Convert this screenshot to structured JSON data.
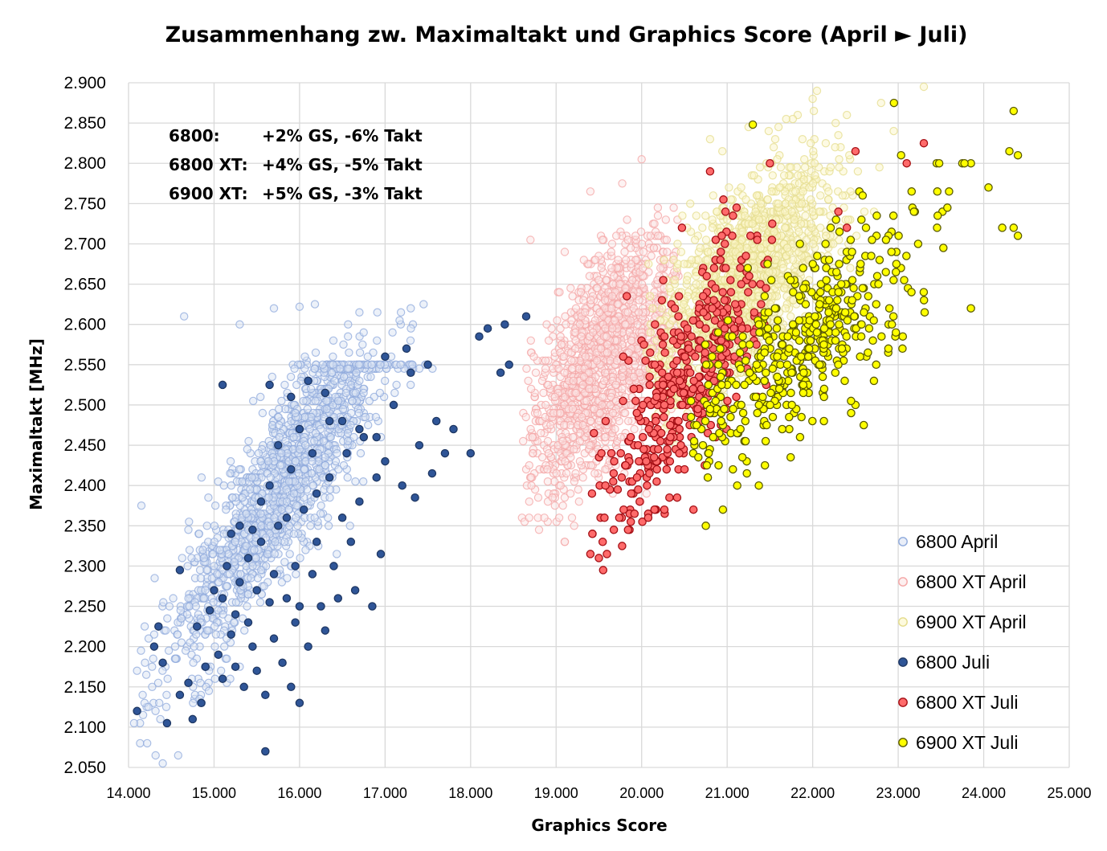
{
  "chart_data": {
    "type": "scatter",
    "title": "Zusammenhang zw. Maximaltakt und Graphics Score (April ► Juli)",
    "xlabel": "Graphics Score",
    "ylabel": "Maximaltakt [MHz]",
    "xlim": [
      14000,
      25000
    ],
    "ylim": [
      2050,
      2900
    ],
    "xticks": [
      14000,
      15000,
      16000,
      17000,
      18000,
      19000,
      20000,
      21000,
      22000,
      23000,
      24000,
      25000
    ],
    "xtick_labels": [
      "14.000",
      "15.000",
      "16.000",
      "17.000",
      "18.000",
      "19.000",
      "20.000",
      "21.000",
      "22.000",
      "23.000",
      "24.000",
      "25.000"
    ],
    "yticks": [
      2050,
      2100,
      2150,
      2200,
      2250,
      2300,
      2350,
      2400,
      2450,
      2500,
      2550,
      2600,
      2650,
      2700,
      2750,
      2800,
      2850,
      2900
    ],
    "ytick_labels": [
      "2.050",
      "2.100",
      "2.150",
      "2.200",
      "2.250",
      "2.300",
      "2.350",
      "2.400",
      "2.450",
      "2.500",
      "2.550",
      "2.600",
      "2.650",
      "2.700",
      "2.750",
      "2.800",
      "2.850",
      "2.900"
    ],
    "grid": true,
    "legend_position": "bottom-right",
    "annotations": [
      {
        "label": "6800:",
        "text": "+2% GS, -6% Takt"
      },
      {
        "label": "6800 XT:",
        "text": "+4% GS, -5% Takt"
      },
      {
        "label": "6900 XT:",
        "text": "+5% GS, -3% Takt"
      }
    ],
    "series": [
      {
        "name": "6800 April",
        "style": "hollow",
        "fill": "#dae3f3",
        "stroke": "#8faadc",
        "opacity": 0.5,
        "point_count": 1400,
        "distribution": {
          "x_center": 15850,
          "x_sd": 700,
          "slope": 0.155,
          "intercept": 2410,
          "y_sd": 55,
          "x_min": 14050,
          "x_max": 17600,
          "y_min": 2055,
          "y_max": 2625,
          "y_cap": 2550
        },
        "points": [
          [
            14650,
            2610
          ],
          [
            15700,
            2620
          ],
          [
            16000,
            2622
          ],
          [
            17450,
            2625
          ],
          [
            14400,
            2055
          ],
          [
            14100,
            2170
          ],
          [
            14150,
            2375
          ],
          [
            17300,
            2620
          ],
          [
            15300,
            2600
          ],
          [
            16700,
            2615
          ]
        ]
      },
      {
        "name": "6800 XT April",
        "style": "hollow",
        "fill": "#fbe5e5",
        "stroke": "#f4a6a6",
        "opacity": 0.5,
        "point_count": 1300,
        "distribution": {
          "x_center": 19550,
          "x_sd": 420,
          "slope": 0.12,
          "intercept": 2555,
          "y_sd": 65,
          "x_min": 18600,
          "x_max": 20450,
          "y_min": 2330,
          "y_max": 2800
        },
        "points": [
          [
            18700,
            2705
          ],
          [
            19400,
            2765
          ],
          [
            20000,
            2805
          ],
          [
            18800,
            2345
          ],
          [
            19100,
            2330
          ],
          [
            18650,
            2420
          ]
        ]
      },
      {
        "name": "6900 XT April",
        "style": "hollow",
        "fill": "#fbf6c7",
        "stroke": "#e4dc8c",
        "opacity": 0.55,
        "point_count": 1400,
        "distribution": {
          "x_center": 21150,
          "x_sd": 550,
          "slope": 0.09,
          "intercept": 2650,
          "y_sd": 55,
          "x_min": 20050,
          "x_max": 23400,
          "y_min": 2450,
          "y_max": 2895
        },
        "points": [
          [
            22050,
            2890
          ],
          [
            23300,
            2895
          ],
          [
            22000,
            2880
          ],
          [
            22800,
            2875
          ],
          [
            21600,
            2845
          ],
          [
            20800,
            2830
          ],
          [
            22400,
            2860
          ],
          [
            23100,
            2800
          ]
        ]
      },
      {
        "name": "6800 Juli",
        "style": "filled",
        "fill": "#2f5597",
        "stroke": "#1f3864",
        "opacity": 1,
        "points": [
          [
            14100,
            2120
          ],
          [
            14350,
            2225
          ],
          [
            14300,
            2200
          ],
          [
            14400,
            2180
          ],
          [
            14450,
            2105
          ],
          [
            14600,
            2140
          ],
          [
            14700,
            2155
          ],
          [
            14750,
            2110
          ],
          [
            14800,
            2225
          ],
          [
            14600,
            2295
          ],
          [
            14850,
            2130
          ],
          [
            14900,
            2175
          ],
          [
            14950,
            2245
          ],
          [
            15000,
            2270
          ],
          [
            15050,
            2190
          ],
          [
            15100,
            2160
          ],
          [
            15100,
            2260
          ],
          [
            15150,
            2300
          ],
          [
            15200,
            2215
          ],
          [
            15250,
            2175
          ],
          [
            15250,
            2240
          ],
          [
            15300,
            2280
          ],
          [
            15350,
            2150
          ],
          [
            15400,
            2230
          ],
          [
            15400,
            2310
          ],
          [
            15450,
            2200
          ],
          [
            15500,
            2170
          ],
          [
            15500,
            2270
          ],
          [
            15550,
            2330
          ],
          [
            15600,
            2140
          ],
          [
            15600,
            2070
          ],
          [
            15650,
            2255
          ],
          [
            15700,
            2290
          ],
          [
            15700,
            2210
          ],
          [
            15750,
            2350
          ],
          [
            15800,
            2180
          ],
          [
            15850,
            2260
          ],
          [
            15850,
            2360
          ],
          [
            15900,
            2150
          ],
          [
            15950,
            2230
          ],
          [
            15950,
            2300
          ],
          [
            16000,
            2130
          ],
          [
            16000,
            2250
          ],
          [
            16050,
            2370
          ],
          [
            16100,
            2200
          ],
          [
            16150,
            2290
          ],
          [
            16200,
            2330
          ],
          [
            16200,
            2390
          ],
          [
            16250,
            2250
          ],
          [
            16300,
            2220
          ],
          [
            16350,
            2410
          ],
          [
            16400,
            2300
          ],
          [
            16450,
            2260
          ],
          [
            16500,
            2360
          ],
          [
            16550,
            2440
          ],
          [
            16600,
            2330
          ],
          [
            16650,
            2270
          ],
          [
            16700,
            2380
          ],
          [
            16750,
            2460
          ],
          [
            16850,
            2250
          ],
          [
            16900,
            2410
          ],
          [
            16950,
            2315
          ],
          [
            17000,
            2430
          ],
          [
            17100,
            2500
          ],
          [
            17200,
            2400
          ],
          [
            17300,
            2540
          ],
          [
            17350,
            2385
          ],
          [
            17400,
            2450
          ],
          [
            17500,
            2550
          ],
          [
            17550,
            2415
          ],
          [
            17600,
            2480
          ],
          [
            17700,
            2440
          ],
          [
            17800,
            2470
          ],
          [
            18000,
            2440
          ],
          [
            18100,
            2585
          ],
          [
            18200,
            2595
          ],
          [
            18350,
            2540
          ],
          [
            18400,
            2600
          ],
          [
            18450,
            2550
          ],
          [
            18650,
            2610
          ],
          [
            15100,
            2525
          ],
          [
            15650,
            2525
          ],
          [
            15900,
            2510
          ],
          [
            16100,
            2530
          ],
          [
            16300,
            2515
          ],
          [
            16500,
            2480
          ],
          [
            16700,
            2470
          ],
          [
            16900,
            2460
          ],
          [
            17000,
            2560
          ],
          [
            17250,
            2570
          ],
          [
            16000,
            2470
          ],
          [
            16150,
            2440
          ],
          [
            16350,
            2480
          ],
          [
            15750,
            2450
          ],
          [
            15900,
            2420
          ],
          [
            15650,
            2400
          ],
          [
            15550,
            2380
          ],
          [
            15450,
            2345
          ],
          [
            15300,
            2350
          ],
          [
            15200,
            2340
          ]
        ]
      },
      {
        "name": "6800 XT Juli",
        "style": "filled",
        "fill": "#ff6b6b",
        "stroke": "#a50f15",
        "opacity": 1,
        "point_count": 420,
        "distribution": {
          "x_center": 20450,
          "x_sd": 500,
          "slope": 0.14,
          "intercept": 2520,
          "y_sd": 60,
          "x_min": 19400,
          "x_max": 22500,
          "y_min": 2300,
          "y_max": 2790
        },
        "points": [
          [
            19400,
            2315
          ],
          [
            19500,
            2310
          ],
          [
            19550,
            2295
          ],
          [
            23300,
            2825
          ],
          [
            22500,
            2815
          ],
          [
            23100,
            2800
          ],
          [
            21500,
            2800
          ],
          [
            20800,
            2790
          ],
          [
            22300,
            2740
          ],
          [
            22400,
            2720
          ]
        ]
      },
      {
        "name": "6900 XT Juli",
        "style": "filled",
        "fill": "#ffff00",
        "stroke": "#5a5a00",
        "opacity": 1,
        "point_count": 460,
        "distribution": {
          "x_center": 21900,
          "x_sd": 750,
          "slope": 0.085,
          "intercept": 2575,
          "y_sd": 50,
          "x_min": 20550,
          "x_max": 24450,
          "y_min": 2350,
          "y_max": 2875
        },
        "points": [
          [
            20750,
            2350
          ],
          [
            20950,
            2370
          ],
          [
            22950,
            2875
          ],
          [
            24350,
            2865
          ],
          [
            21300,
            2848
          ],
          [
            24300,
            2815
          ],
          [
            24400,
            2810
          ],
          [
            23850,
            2800
          ],
          [
            23750,
            2800
          ],
          [
            23450,
            2800
          ],
          [
            24350,
            2720
          ],
          [
            24400,
            2710
          ],
          [
            23850,
            2620
          ],
          [
            23050,
            2570
          ],
          [
            22500,
            2500
          ],
          [
            22450,
            2490
          ]
        ]
      }
    ]
  }
}
